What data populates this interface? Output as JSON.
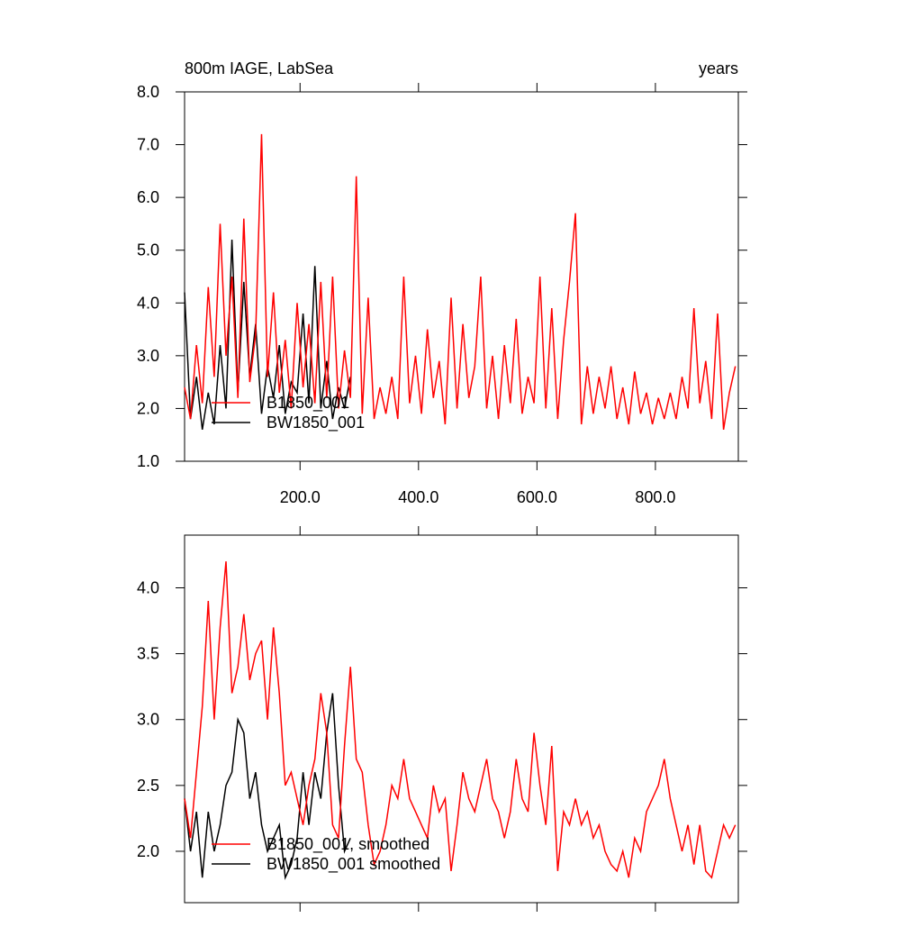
{
  "chart_data": [
    {
      "type": "line",
      "title": "800m IAGE, LabSea",
      "right_title": "years",
      "xlim": [
        5,
        940
      ],
      "ylim": [
        1,
        8
      ],
      "xticks": [
        {
          "value": 200,
          "label": "200.0"
        },
        {
          "value": 400,
          "label": "400.0"
        },
        {
          "value": 600,
          "label": "600.0"
        },
        {
          "value": 800,
          "label": "800.0"
        }
      ],
      "yticks": [
        {
          "value": 1,
          "label": "1.0"
        },
        {
          "value": 2,
          "label": "2.0"
        },
        {
          "value": 3,
          "label": "3.0"
        },
        {
          "value": 4,
          "label": "4.0"
        },
        {
          "value": 5,
          "label": "5.0"
        },
        {
          "value": 6,
          "label": "6.0"
        },
        {
          "value": 7,
          "label": "7.0"
        },
        {
          "value": 8,
          "label": "8.0"
        }
      ],
      "legend": "lower left",
      "series": [
        {
          "name": "BW1850_001",
          "color": "#000000",
          "x": [
            5,
            15,
            25,
            35,
            45,
            55,
            65,
            75,
            85,
            95,
            105,
            115,
            125,
            135,
            145,
            155,
            165,
            175,
            185,
            195,
            205,
            215,
            225,
            235,
            245,
            255,
            265,
            275,
            285
          ],
          "values": [
            4.2,
            1.8,
            2.6,
            1.6,
            2.3,
            1.7,
            3.2,
            2.0,
            5.2,
            2.3,
            4.4,
            2.6,
            3.6,
            1.9,
            2.8,
            2.2,
            3.2,
            1.9,
            2.5,
            2.3,
            3.8,
            2.1,
            4.7,
            2.0,
            2.9,
            1.8,
            2.4,
            2.0,
            2.6
          ]
        },
        {
          "name": "B1850_001",
          "color": "#ff0000",
          "x": [
            5,
            15,
            25,
            35,
            45,
            55,
            65,
            75,
            85,
            95,
            105,
            115,
            125,
            135,
            145,
            155,
            165,
            175,
            185,
            195,
            205,
            215,
            225,
            235,
            245,
            255,
            265,
            275,
            285,
            295,
            305,
            315,
            325,
            335,
            345,
            355,
            365,
            375,
            385,
            395,
            405,
            415,
            425,
            435,
            445,
            455,
            465,
            475,
            485,
            495,
            505,
            515,
            525,
            535,
            545,
            555,
            565,
            575,
            585,
            595,
            605,
            615,
            625,
            635,
            645,
            655,
            665,
            675,
            685,
            695,
            705,
            715,
            725,
            735,
            745,
            755,
            765,
            775,
            785,
            795,
            805,
            815,
            825,
            835,
            845,
            855,
            865,
            875,
            885,
            895,
            905,
            915,
            925,
            935
          ],
          "values": [
            2.4,
            1.8,
            3.2,
            2.1,
            4.3,
            2.6,
            5.5,
            3.0,
            4.5,
            2.2,
            5.6,
            2.5,
            3.4,
            7.2,
            2.6,
            4.2,
            2.3,
            3.3,
            2.0,
            4.0,
            2.4,
            3.6,
            2.1,
            4.4,
            2.2,
            4.5,
            2.0,
            3.1,
            2.2,
            6.4,
            1.9,
            4.1,
            1.8,
            2.4,
            1.9,
            2.6,
            1.8,
            4.5,
            2.1,
            3.0,
            1.9,
            3.5,
            2.2,
            2.9,
            1.7,
            4.1,
            2.0,
            3.6,
            2.2,
            2.8,
            4.5,
            2.0,
            3.0,
            1.8,
            3.2,
            2.1,
            3.7,
            1.9,
            2.6,
            2.1,
            4.5,
            2.0,
            3.9,
            1.8,
            3.3,
            4.4,
            5.7,
            1.7,
            2.8,
            1.9,
            2.6,
            2.0,
            2.8,
            1.8,
            2.4,
            1.7,
            2.7,
            1.9,
            2.3,
            1.7,
            2.2,
            1.8,
            2.3,
            1.8,
            2.6,
            2.0,
            3.9,
            2.1,
            2.9,
            1.8,
            3.8,
            1.6,
            2.3,
            2.8
          ]
        }
      ]
    },
    {
      "type": "line",
      "xlim": [
        5,
        940
      ],
      "ylim": [
        1.61,
        4.4
      ],
      "xticks": [
        200,
        400,
        600,
        800
      ],
      "show_xtick_labels": false,
      "yticks": [
        {
          "value": 2,
          "label": "2.0"
        },
        {
          "value": 2.5,
          "label": "2.5"
        },
        {
          "value": 3,
          "label": "3.0"
        },
        {
          "value": 3.5,
          "label": "3.5"
        },
        {
          "value": 4,
          "label": "4.0"
        }
      ],
      "legend": "lower left",
      "series": [
        {
          "name": "BW1850_001 smoothed",
          "color": "#000000",
          "x": [
            5,
            15,
            25,
            35,
            45,
            55,
            65,
            75,
            85,
            95,
            105,
            115,
            125,
            135,
            145,
            155,
            165,
            175,
            185,
            195,
            205,
            215,
            225,
            235,
            245,
            255,
            265,
            275,
            285
          ],
          "values": [
            2.4,
            2.0,
            2.3,
            1.8,
            2.3,
            2.0,
            2.2,
            2.5,
            2.6,
            3.0,
            2.9,
            2.4,
            2.6,
            2.2,
            2.0,
            2.1,
            2.2,
            1.8,
            1.9,
            2.1,
            2.6,
            2.2,
            2.6,
            2.4,
            2.9,
            3.2,
            2.5,
            2.0,
            2.1
          ]
        },
        {
          "name": "B1850_001, smoothed",
          "color": "#ff0000",
          "x": [
            5,
            15,
            25,
            35,
            45,
            55,
            65,
            75,
            85,
            95,
            105,
            115,
            125,
            135,
            145,
            155,
            165,
            175,
            185,
            195,
            205,
            215,
            225,
            235,
            245,
            255,
            265,
            275,
            285,
            295,
            305,
            315,
            325,
            335,
            345,
            355,
            365,
            375,
            385,
            395,
            405,
            415,
            425,
            435,
            445,
            455,
            465,
            475,
            485,
            495,
            505,
            515,
            525,
            535,
            545,
            555,
            565,
            575,
            585,
            595,
            605,
            615,
            625,
            635,
            645,
            655,
            665,
            675,
            685,
            695,
            705,
            715,
            725,
            735,
            745,
            755,
            765,
            775,
            785,
            795,
            805,
            815,
            825,
            835,
            845,
            855,
            865,
            875,
            885,
            895,
            905,
            915,
            925,
            935
          ],
          "values": [
            2.4,
            2.1,
            2.6,
            3.1,
            3.9,
            3.0,
            3.7,
            4.2,
            3.2,
            3.4,
            3.8,
            3.3,
            3.5,
            3.6,
            3.0,
            3.7,
            3.2,
            2.5,
            2.6,
            2.4,
            2.2,
            2.5,
            2.7,
            3.2,
            2.9,
            2.2,
            2.1,
            2.8,
            3.4,
            2.7,
            2.6,
            2.2,
            1.9,
            2.0,
            2.2,
            2.5,
            2.4,
            2.7,
            2.4,
            2.3,
            2.2,
            2.1,
            2.5,
            2.3,
            2.4,
            1.85,
            2.2,
            2.6,
            2.4,
            2.3,
            2.5,
            2.7,
            2.4,
            2.3,
            2.1,
            2.3,
            2.7,
            2.4,
            2.3,
            2.9,
            2.5,
            2.2,
            2.8,
            1.85,
            2.3,
            2.2,
            2.4,
            2.2,
            2.3,
            2.1,
            2.2,
            2.0,
            1.9,
            1.85,
            2.0,
            1.8,
            2.1,
            2.0,
            2.3,
            2.4,
            2.5,
            2.7,
            2.4,
            2.2,
            2.0,
            2.2,
            1.9,
            2.2,
            1.85,
            1.8,
            2.0,
            2.2,
            2.1,
            2.2
          ]
        }
      ]
    }
  ]
}
